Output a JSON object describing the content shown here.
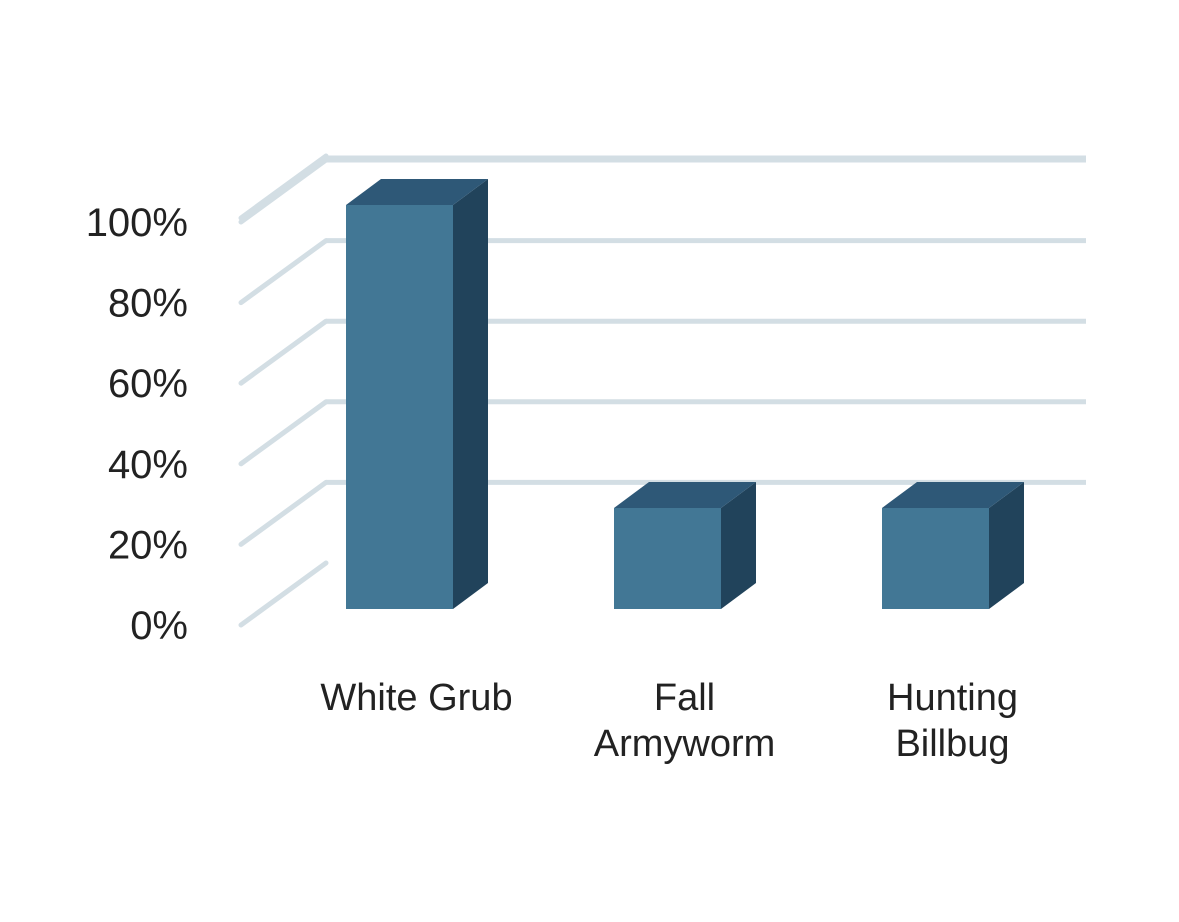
{
  "chart_data": {
    "type": "bar",
    "style": "3d",
    "title": "",
    "xlabel": "",
    "ylabel": "",
    "categories": [
      [
        "White Grub"
      ],
      [
        "Fall",
        "Armyworm"
      ],
      [
        "Hunting",
        "Billbug"
      ]
    ],
    "values": [
      100,
      25,
      25
    ],
    "ylim": [
      0,
      100
    ],
    "yticks": [
      0,
      20,
      40,
      60,
      80,
      100
    ],
    "ytick_labels": [
      "0%",
      "20%",
      "40%",
      "60%",
      "80%",
      "100%"
    ],
    "grid": true,
    "colors": {
      "bar_front": "#427795",
      "bar_side": "#21435b",
      "bar_top": "#2e5877",
      "grid": "#d3dee4"
    }
  }
}
